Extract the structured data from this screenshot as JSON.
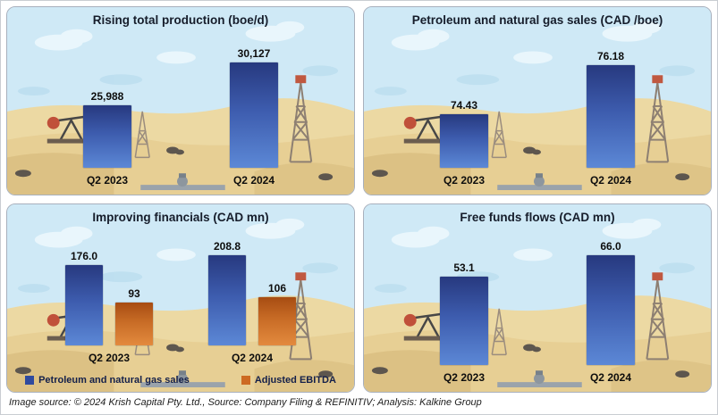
{
  "page": {
    "caption": "Image source: © 2024 Krish Capital Pty. Ltd., Source: Company Filing & REFINITIV; Analysis: Kalkine Group"
  },
  "colors": {
    "bar_blue_top": "#27397f",
    "bar_blue_bottom": "#5c88d6",
    "bar_orange_top": "#a74c12",
    "bar_orange_bottom": "#e38a3e",
    "sky": "#cfe9f6",
    "sand": "#ecd9a3",
    "panel_border": "#a8b0bd",
    "title_text": "#161d2b"
  },
  "chart_data": [
    {
      "type": "bar",
      "title": "Rising total production (boe/d)",
      "categories": [
        "Q2 2023",
        "Q2 2024"
      ],
      "values": [
        25988,
        30127
      ],
      "value_labels": [
        "25,988",
        "30,127"
      ],
      "ylim": [
        20000,
        32000
      ],
      "series_name": "Total production (boe/d)",
      "bar_color": "blue",
      "legend_position": "none",
      "grid": false
    },
    {
      "type": "bar",
      "title": "Petroleum and natural gas sales (CAD /boe)",
      "categories": [
        "Q2 2023",
        "Q2 2024"
      ],
      "values": [
        74.43,
        76.18
      ],
      "value_labels": [
        "74.43",
        "76.18"
      ],
      "ylim": [
        72.5,
        77
      ],
      "series_name": "Petroleum and natural gas sales (CAD/boe)",
      "bar_color": "blue",
      "legend_position": "none",
      "grid": false
    },
    {
      "type": "bar",
      "title": "Improving financials (CAD mn)",
      "categories": [
        "Q2 2023",
        "Q2 2024"
      ],
      "series": [
        {
          "name": "Petroleum and natural gas sales",
          "values": [
            176.0,
            208.8
          ],
          "value_labels": [
            "176.0",
            "208.8"
          ],
          "color": "blue"
        },
        {
          "name": "Adjusted EBITDA",
          "values": [
            93,
            106
          ],
          "value_labels": [
            "93",
            "106"
          ],
          "color": "orange"
        }
      ],
      "ylim": [
        0,
        230
      ],
      "legend_position": "bottom",
      "grid": false
    },
    {
      "type": "bar",
      "title": "Free funds flows (CAD mn)",
      "categories": [
        "Q2 2023",
        "Q2 2024"
      ],
      "values": [
        53.1,
        66.0
      ],
      "value_labels": [
        "53.1",
        "66.0"
      ],
      "ylim": [
        0,
        75
      ],
      "series_name": "Free funds flows (CAD mn)",
      "bar_color": "blue",
      "legend_position": "none",
      "grid": false
    }
  ]
}
